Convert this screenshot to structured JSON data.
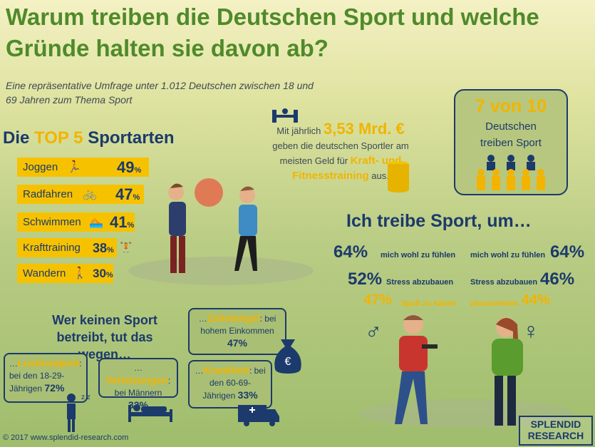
{
  "title": "Warum treiben die Deutschen Sport und welche Gründe halten sie davon ab?",
  "subtitle": "Eine repräsentative Umfrage unter 1.012 Deutschen zwischen 18 und 69 Jahren zum Thema Sport",
  "top5": {
    "prefix": "Die",
    "highlight": "TOP 5",
    "suffix": "Sportarten",
    "items": [
      {
        "label": "Joggen",
        "value": "49",
        "unit": "%",
        "icon": "runner-icon",
        "fraction": 0.49
      },
      {
        "label": "Radfahren",
        "value": "47",
        "unit": "%",
        "icon": "bicycle-icon",
        "fraction": 0.47
      },
      {
        "label": "Schwimmen",
        "value": "41",
        "unit": "%",
        "icon": "swimmer-icon",
        "fraction": 0.41
      },
      {
        "label": "Krafttraining",
        "value": "38",
        "unit": "%",
        "icon": "dumbbell-icon",
        "fraction": 0.38
      },
      {
        "label": "Wandern",
        "value": "30",
        "unit": "%",
        "icon": "hiker-icon",
        "fraction": 0.3
      }
    ]
  },
  "money": {
    "line1": "Mit jährlich",
    "amount": "3,53 Mrd. €",
    "line2": "geben die deutschen Sportler am meisten Geld für",
    "highlight": "Kraft- und Fitnesstraining",
    "line3": "aus."
  },
  "seven_of_ten": {
    "value": "7 von 10",
    "line1": "Deutschen",
    "line2": "treiben Sport"
  },
  "reasons": {
    "title": "Ich treibe Sport, um…",
    "male": [
      {
        "value": "64%",
        "text": "mich wohl zu fühlen"
      },
      {
        "value": "52%",
        "text": "Stress abzubauen"
      },
      {
        "value": "47%",
        "text": "Spaß zu haben"
      }
    ],
    "female": [
      {
        "value": "64%",
        "text": "mich wohl zu fühlen"
      },
      {
        "value": "46%",
        "text": "Stress abzubauen"
      },
      {
        "value": "44%",
        "text": "abzunehmen"
      }
    ],
    "male_symbol": "♂",
    "female_symbol": "♀"
  },
  "nosport": {
    "title": "Wer keinen Sport betreibt, tut das wegen…",
    "lustlosigkeit": {
      "prefix": "…",
      "head": "Lustlosigkeit",
      "text": "bei den 18-29-Jährigen",
      "value": "72%"
    },
    "verletzungen": {
      "prefix": "…",
      "head": "Verletzungen",
      "text": "bei Männern",
      "value": "32%"
    },
    "zeitmangel": {
      "prefix": "…",
      "head": "Zeitmangel",
      "text": "bei hohem Einkommen",
      "value": "47%"
    },
    "krankheit": {
      "prefix": "…",
      "head": "Krankheit",
      "text": "bei den 60-69-Jährigen",
      "value": "33%"
    }
  },
  "footer": "© 2017 www.splendid-research.com",
  "logo": {
    "line1": "SPLENDID",
    "line2": "RESEARCH"
  },
  "colors": {
    "green": "#4f8a2a",
    "navy": "#1c3a6b",
    "yellow": "#f2b400"
  }
}
